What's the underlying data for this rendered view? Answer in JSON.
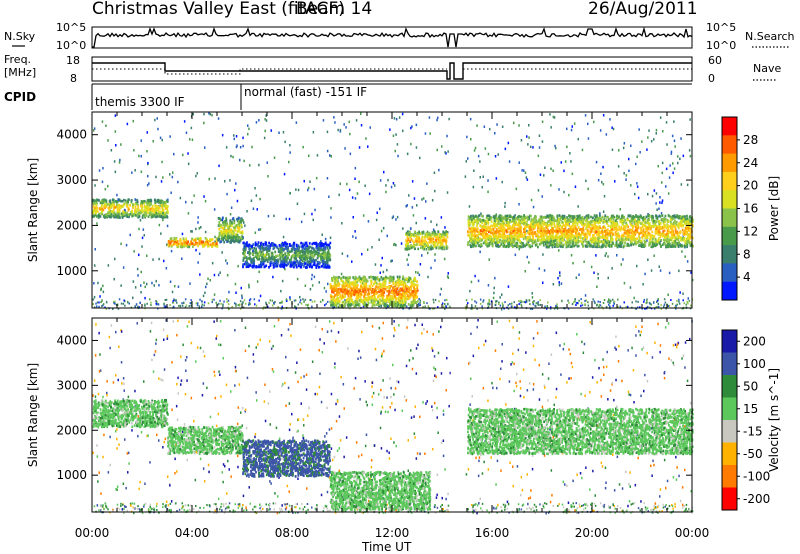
{
  "header": {
    "station": "Christmas Valley East (fitACF)",
    "beam": "Beam 14",
    "date": "26/Aug/2011"
  },
  "top_panels": {
    "nsky_label": "N.Sky",
    "nsky_ticks": [
      "10^5",
      "10^0"
    ],
    "nsearch_label": "N.Search",
    "nsearch_ticks": [
      "10^5",
      "10^0"
    ],
    "freq_label": "Freq.",
    "freq_unit": "[MHz]",
    "freq_ticks": [
      "18",
      "8"
    ],
    "nave_label": "Nave",
    "nave_ticks": [
      "60",
      "0"
    ],
    "cpid_label": "CPID",
    "cpid_segments": [
      {
        "start_hour": 0.0,
        "end_hour": 6.0,
        "label": "themis 3300 IF"
      },
      {
        "start_hour": 6.0,
        "end_hour": 24.0,
        "label": "normal (fast) -151 IF"
      }
    ]
  },
  "chart_data": [
    {
      "type": "heatmap",
      "title": "",
      "xlabel": "Time UT",
      "ylabel": "Slant Range [km]",
      "xlim": [
        0,
        24
      ],
      "ylim": [
        180,
        4500
      ],
      "x_ticks": [
        "00:00",
        "04:00",
        "08:00",
        "12:00",
        "16:00",
        "20:00",
        "00:00"
      ],
      "y_ticks": [
        1000,
        2000,
        3000,
        4000
      ],
      "colorbar": {
        "label": "Power [dB]",
        "ticks": [
          4,
          8,
          12,
          16,
          20,
          24,
          28
        ],
        "range": [
          0,
          32
        ],
        "colors": [
          "#0018ff",
          "#2a5fc2",
          "#3a7e6e",
          "#4a9a4c",
          "#8bc34a",
          "#d9e021",
          "#ffcf1b",
          "#ff9a00",
          "#ff5a00",
          "#ff0000"
        ]
      },
      "echo_bands": [
        {
          "t0": 0.0,
          "t1": 3.0,
          "range_km": [
            2200,
            2600
          ],
          "level": 22
        },
        {
          "t0": 3.0,
          "t1": 5.0,
          "range_km": [
            1550,
            1750
          ],
          "level": 28
        },
        {
          "t0": 5.0,
          "t1": 6.0,
          "range_km": [
            1650,
            2200
          ],
          "level": 20
        },
        {
          "t0": 6.0,
          "t1": 9.5,
          "range_km": [
            1100,
            1650
          ],
          "level": 14
        },
        {
          "t0": 9.5,
          "t1": 13.0,
          "range_km": [
            250,
            900
          ],
          "level": 26
        },
        {
          "t0": 12.5,
          "t1": 14.2,
          "range_km": [
            1500,
            1900
          ],
          "level": 24
        },
        {
          "t0": 15.0,
          "t1": 24.0,
          "range_km": [
            1550,
            2250
          ],
          "level": 24
        }
      ]
    },
    {
      "type": "heatmap",
      "title": "",
      "xlabel": "Time UT",
      "ylabel": "Slant Range [km]",
      "xlim": [
        0,
        24
      ],
      "ylim": [
        180,
        4500
      ],
      "x_ticks": [
        "00:00",
        "04:00",
        "08:00",
        "12:00",
        "16:00",
        "20:00",
        "00:00"
      ],
      "y_ticks": [
        1000,
        2000,
        3000,
        4000
      ],
      "colorbar": {
        "label": "Velocity [m s^-1]",
        "ticks": [
          200,
          100,
          50,
          15,
          -15,
          -50,
          -100,
          -200
        ],
        "colors": [
          "#1a1aa8",
          "#3d55a8",
          "#2e8b3a",
          "#5cc85c",
          "#c8c8c0",
          "#ffb300",
          "#ff7a00",
          "#ff0000"
        ]
      },
      "echo_bands": [
        {
          "t0": 0.0,
          "t1": 3.0,
          "range_km": [
            2100,
            2700
          ],
          "velocity": 0
        },
        {
          "t0": 3.0,
          "t1": 6.0,
          "range_km": [
            1500,
            2100
          ],
          "velocity": 0
        },
        {
          "t0": 6.0,
          "t1": 9.5,
          "range_km": [
            1000,
            1800
          ],
          "velocity": 60
        },
        {
          "t0": 9.5,
          "t1": 13.5,
          "range_km": [
            250,
            1100
          ],
          "velocity": 0
        },
        {
          "t0": 15.0,
          "t1": 24.0,
          "range_km": [
            1500,
            2500
          ],
          "velocity": 0
        }
      ]
    }
  ]
}
